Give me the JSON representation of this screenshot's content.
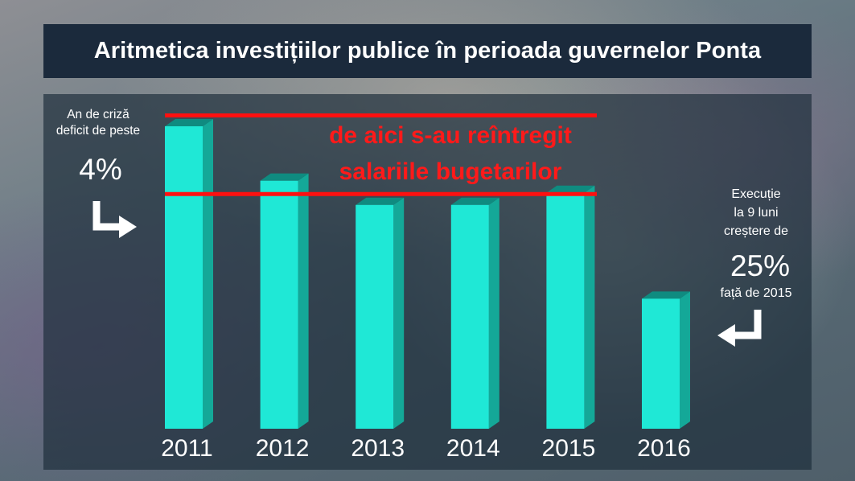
{
  "title": "Aritmetica investițiilor publice în perioada guvernelor Ponta",
  "annotation": {
    "line1": "de aici s-au reîntregit",
    "line2": "salariile bugetarilor"
  },
  "left_note": {
    "line1": "An de criză",
    "line2": "deficit de peste",
    "value": "4%"
  },
  "right_note": {
    "line1": "Execuție",
    "line2": "la 9 luni",
    "line3": "creștere de",
    "value": "25%",
    "line4": "față de 2015"
  },
  "colors": {
    "bar": "#1fe8d6",
    "bar_side": "#14a898",
    "bar_top": "#0f8b80",
    "reference_line": "#ff1010",
    "title_bg": "#1b2a3c"
  },
  "chart_data": {
    "type": "bar",
    "style": "3d",
    "categories": [
      "2011",
      "2012",
      "2013",
      "2014",
      "2015",
      "2016"
    ],
    "values": [
      100,
      82,
      74,
      74,
      78,
      43
    ],
    "ylim": [
      0,
      100
    ],
    "reference_lines": [
      102,
      76
    ],
    "title": "Aritmetica investițiilor publice în perioada guvernelor Ponta",
    "xlabel": "",
    "ylabel": "",
    "grid": false,
    "legend": "none"
  }
}
